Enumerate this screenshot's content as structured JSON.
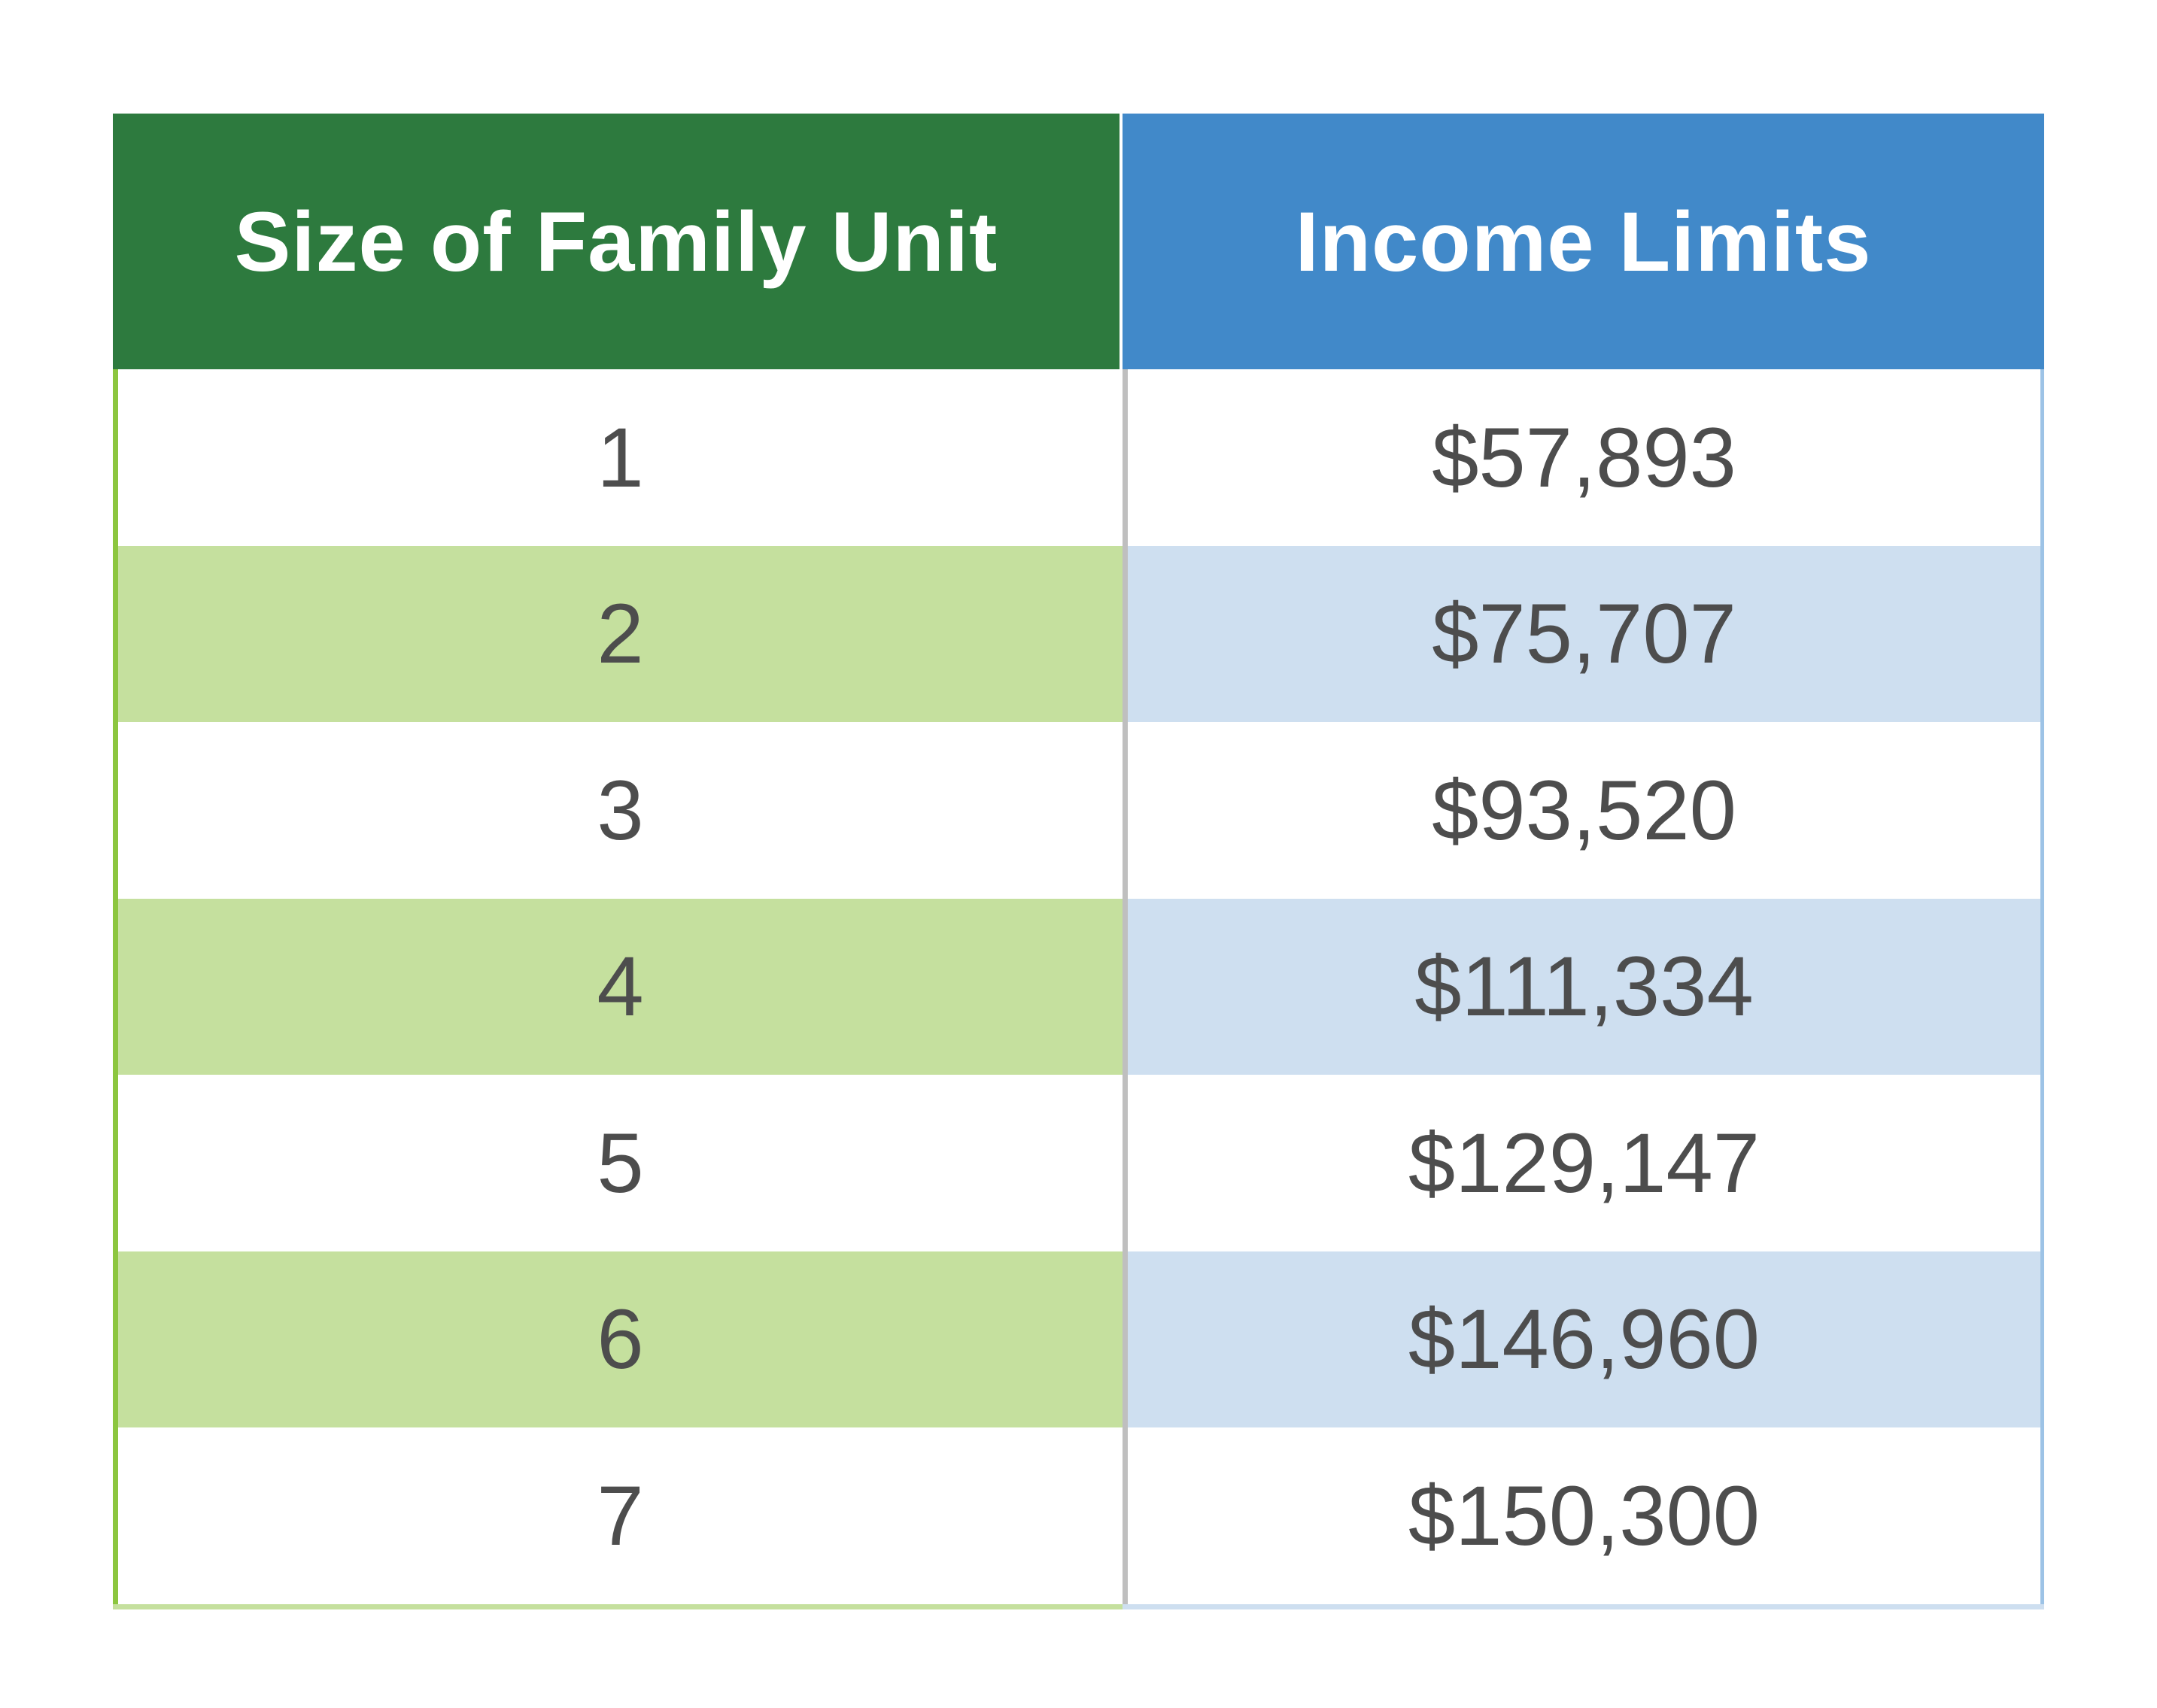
{
  "colors": {
    "left_header": "#2d7a3e",
    "right_header": "#4189c9",
    "left_alt_row": "#c5e09e",
    "right_alt_row": "#cedff0",
    "left_border": "#8cc63f",
    "right_border": "#9dc3e6",
    "bottom_left": "#c5e09e",
    "bottom_right": "#cedff0"
  },
  "table": {
    "headers": [
      "Size of Family Unit",
      "Income Limits"
    ],
    "rows": [
      [
        "1",
        "$57,893"
      ],
      [
        "2",
        "$75,707"
      ],
      [
        "3",
        "$93,520"
      ],
      [
        "4",
        "$111,334"
      ],
      [
        "5",
        "$129,147"
      ],
      [
        "6",
        "$146,960"
      ],
      [
        "7",
        "$150,300"
      ]
    ]
  }
}
